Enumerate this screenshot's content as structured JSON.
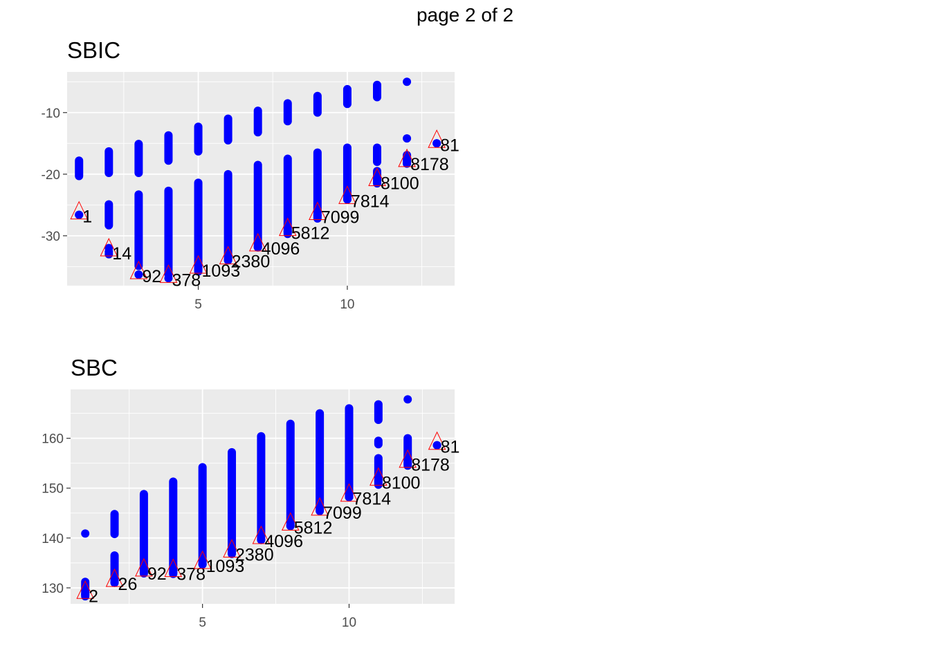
{
  "page_title": "page 2 of 2",
  "colors": {
    "points": "#0000ff",
    "highlight": "#ff0000",
    "panel_bg": "#ebebeb",
    "grid": "#ffffff"
  },
  "chart_data": [
    {
      "type": "scatter",
      "title": "SBIC",
      "xlabel": "",
      "ylabel": "",
      "xlim": [
        0.6,
        13.6
      ],
      "ylim": [
        -38.1,
        -3.4
      ],
      "xticks": [
        5,
        10
      ],
      "yticks": [
        -10,
        -20,
        -30
      ],
      "grid": true,
      "series": [
        {
          "points_ranges": [
            {
              "x": 1,
              "ranges": [
                [
                  -20.3,
                  -17.8
                ]
              ],
              "singles": [
                -26.6
              ]
            },
            {
              "x": 2,
              "ranges": [
                [
                  -19.8,
                  -16.3
                ],
                [
                  -28.3,
                  -24.9
                ]
              ],
              "singles": [
                -32.0,
                -33.0
              ]
            },
            {
              "x": 3,
              "ranges": [
                [
                  -19.8,
                  -15.1
                ],
                [
                  -34.9,
                  -23.3
                ]
              ],
              "singles": [
                -36.3
              ]
            },
            {
              "x": 4,
              "ranges": [
                [
                  -17.8,
                  -13.7
                ],
                [
                  -36.3,
                  -22.7
                ]
              ],
              "singles": []
            },
            {
              "x": 5,
              "ranges": [
                [
                  -16.3,
                  -12.3
                ],
                [
                  -35.8,
                  -21.4
                ]
              ],
              "singles": []
            },
            {
              "x": 6,
              "ranges": [
                [
                  -14.5,
                  -11.0
                ],
                [
                  -34.0,
                  -20.0
                ]
              ],
              "singles": []
            },
            {
              "x": 7,
              "ranges": [
                [
                  -13.2,
                  -9.7
                ],
                [
                  -31.9,
                  -18.5
                ]
              ],
              "singles": []
            },
            {
              "x": 8,
              "ranges": [
                [
                  -11.4,
                  -8.5
                ],
                [
                  -29.7,
                  -17.5
                ]
              ],
              "singles": []
            },
            {
              "x": 9,
              "ranges": [
                [
                  -10.0,
                  -7.3
                ],
                [
                  -27.2,
                  -16.5
                ]
              ],
              "singles": []
            },
            {
              "x": 10,
              "ranges": [
                [
                  -8.6,
                  -6.2
                ],
                [
                  -24.1,
                  -15.7
                ]
              ],
              "singles": []
            },
            {
              "x": 11,
              "ranges": [
                [
                  -7.5,
                  -5.5
                ],
                [
                  -21.5,
                  -19.5
                ],
                [
                  -18.0,
                  -15.7
                ]
              ],
              "singles": []
            },
            {
              "x": 12,
              "ranges": [
                [
                  -18.3,
                  -16.9
                ]
              ],
              "singles": [
                -14.2,
                -5.0
              ]
            },
            {
              "x": 13,
              "ranges": [],
              "singles": [
                -15.0
              ]
            }
          ]
        }
      ],
      "highlighted": [
        {
          "x": 1,
          "y": -26.6,
          "label": "1"
        },
        {
          "x": 2,
          "y": -32.6,
          "label": "14"
        },
        {
          "x": 3,
          "y": -36.3,
          "label": "92"
        },
        {
          "x": 4,
          "y": -36.9,
          "label": "378"
        },
        {
          "x": 5,
          "y": -35.4,
          "label": "1093"
        },
        {
          "x": 6,
          "y": -33.9,
          "label": "2380"
        },
        {
          "x": 7,
          "y": -31.8,
          "label": "4096"
        },
        {
          "x": 8,
          "y": -29.3,
          "label": "5812"
        },
        {
          "x": 9,
          "y": -26.7,
          "label": "7099"
        },
        {
          "x": 10,
          "y": -24.1,
          "label": "7814"
        },
        {
          "x": 11,
          "y": -21.2,
          "label": "8100"
        },
        {
          "x": 12,
          "y": -18.1,
          "label": "8178"
        },
        {
          "x": 13,
          "y": -15.0,
          "label": "81"
        }
      ]
    },
    {
      "type": "scatter",
      "title": "SBC",
      "xlabel": "",
      "ylabel": "",
      "xlim": [
        0.5,
        13.6
      ],
      "ylim": [
        126.8,
        169.8
      ],
      "xticks": [
        5,
        10
      ],
      "yticks": [
        130,
        140,
        150,
        160
      ],
      "grid": true,
      "series": [
        {
          "points_ranges": [
            {
              "x": 1,
              "ranges": [
                [
                  128.3,
                  131.2
                ]
              ],
              "singles": [
                140.9
              ]
            },
            {
              "x": 2,
              "ranges": [
                [
                  131.0,
                  136.5
                ],
                [
                  140.8,
                  144.8
                ]
              ],
              "singles": []
            },
            {
              "x": 3,
              "ranges": [
                [
                  132.9,
                  148.8
                ]
              ],
              "singles": []
            },
            {
              "x": 4,
              "ranges": [
                [
                  132.8,
                  151.3
                ]
              ],
              "singles": []
            },
            {
              "x": 5,
              "ranges": [
                [
                  134.7,
                  154.2
                ]
              ],
              "singles": []
            },
            {
              "x": 6,
              "ranges": [
                [
                  136.8,
                  157.2
                ]
              ],
              "singles": []
            },
            {
              "x": 7,
              "ranges": [
                [
                  139.6,
                  160.4
                ]
              ],
              "singles": []
            },
            {
              "x": 8,
              "ranges": [
                [
                  142.4,
                  162.9
                ]
              ],
              "singles": []
            },
            {
              "x": 9,
              "ranges": [
                [
                  145.7,
                  165.0
                ]
              ],
              "singles": []
            },
            {
              "x": 10,
              "ranges": [
                [
                  148.2,
                  166.0
                ]
              ],
              "singles": []
            },
            {
              "x": 11,
              "ranges": [
                [
                  150.7,
                  156.0
                ],
                [
                  158.8,
                  159.5
                ],
                [
                  163.7,
                  166.8
                ]
              ],
              "singles": []
            },
            {
              "x": 12,
              "ranges": [
                [
                  154.5,
                  160.0
                ]
              ],
              "singles": [
                167.8
              ]
            },
            {
              "x": 13,
              "ranges": [],
              "singles": [
                158.6
              ]
            }
          ]
        }
      ],
      "highlighted": [
        {
          "x": 1,
          "y": 128.7,
          "label": "2"
        },
        {
          "x": 2,
          "y": 131.1,
          "label": "26"
        },
        {
          "x": 3,
          "y": 133.2,
          "label": "92"
        },
        {
          "x": 4,
          "y": 133.1,
          "label": "378"
        },
        {
          "x": 5,
          "y": 134.7,
          "label": "1093"
        },
        {
          "x": 6,
          "y": 137.0,
          "label": "2380"
        },
        {
          "x": 7,
          "y": 139.7,
          "label": "4096"
        },
        {
          "x": 8,
          "y": 142.4,
          "label": "5812"
        },
        {
          "x": 9,
          "y": 145.4,
          "label": "7099"
        },
        {
          "x": 10,
          "y": 148.2,
          "label": "7814"
        },
        {
          "x": 11,
          "y": 151.4,
          "label": "8100"
        },
        {
          "x": 12,
          "y": 155.0,
          "label": "8178"
        },
        {
          "x": 13,
          "y": 158.6,
          "label": "81"
        }
      ]
    }
  ]
}
